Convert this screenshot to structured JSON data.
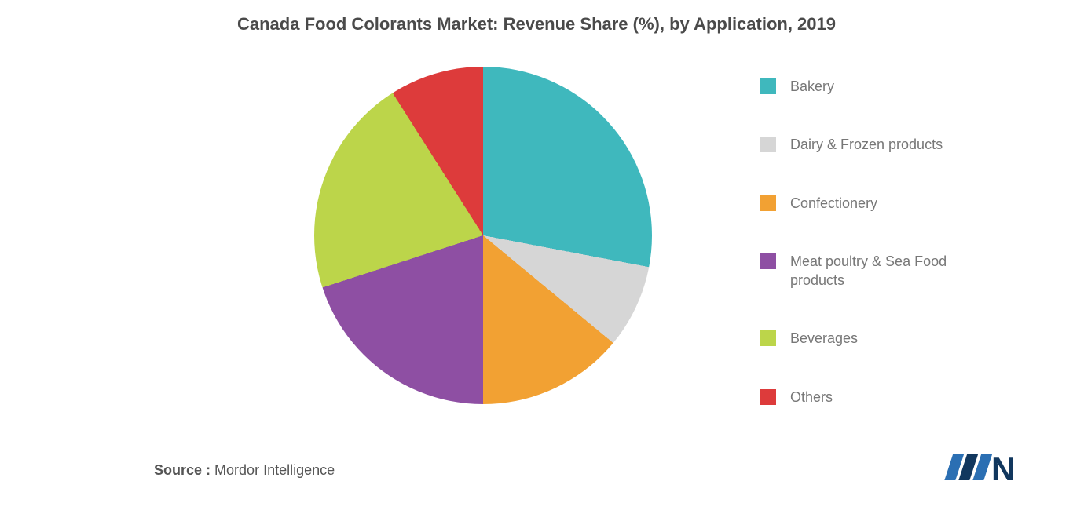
{
  "chart": {
    "type": "pie",
    "title": "Canada Food Colorants Market: Revenue Share (%), by Application, 2019",
    "title_fontsize": 22,
    "title_color": "#4a4a4a",
    "background_color": "#ffffff",
    "slices": [
      {
        "label": "Bakery",
        "value": 28,
        "color": "#3fb8bd"
      },
      {
        "label": "Dairy & Frozen products",
        "value": 8,
        "color": "#d6d6d6"
      },
      {
        "label": "Confectionery",
        "value": 14,
        "color": "#f2a133"
      },
      {
        "label": "Meat poultry & Sea Food products",
        "value": 20,
        "color": "#8e4fa3"
      },
      {
        "label": "Beverages",
        "value": 21,
        "color": "#bcd54a"
      },
      {
        "label": "Others",
        "value": 9,
        "color": "#dd3b3b"
      }
    ],
    "legend_fontsize": 18,
    "legend_text_color": "#777777"
  },
  "source": {
    "label": "Source :",
    "value": "Mordor Intelligence"
  },
  "logo": {
    "name": "mordor-intelligence-logo",
    "bars": [
      "#2b6fb3",
      "#11375e"
    ],
    "letter_color": "#11375e"
  }
}
